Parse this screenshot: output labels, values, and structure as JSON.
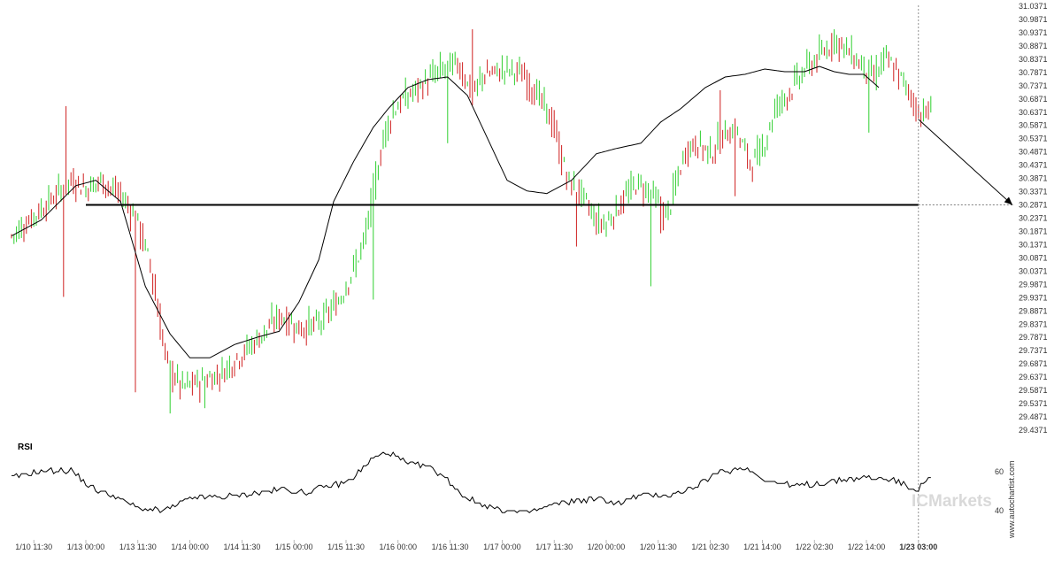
{
  "chart_data": {
    "type": "candlestick",
    "y_ticks": [
      "31.0371",
      "30.9871",
      "30.9371",
      "30.8871",
      "30.8371",
      "30.7871",
      "30.7371",
      "30.6871",
      "30.6371",
      "30.5871",
      "30.5371",
      "30.4871",
      "30.4371",
      "30.3871",
      "30.3371",
      "30.2871",
      "30.2371",
      "30.1871",
      "30.1371",
      "30.0871",
      "30.0371",
      "29.9871",
      "29.9371",
      "29.8871",
      "29.8371",
      "29.7871",
      "29.7371",
      "29.6871",
      "29.6371",
      "29.5871",
      "29.5371",
      "29.4871",
      "29.4371"
    ],
    "ylim": [
      29.4371,
      31.0371
    ],
    "x_ticks": [
      {
        "label": "1/10 11:30",
        "bar": 9
      },
      {
        "label": "1/13 00:00",
        "bar": 30
      },
      {
        "label": "1/13 11:30",
        "bar": 51
      },
      {
        "label": "1/14 00:00",
        "bar": 72
      },
      {
        "label": "1/14 11:30",
        "bar": 93
      },
      {
        "label": "1/15 00:00",
        "bar": 114
      },
      {
        "label": "1/15 11:30",
        "bar": 135
      },
      {
        "label": "1/16 00:00",
        "bar": 156
      },
      {
        "label": "1/16 11:30",
        "bar": 177
      },
      {
        "label": "1/17 00:00",
        "bar": 198
      },
      {
        "label": "1/17 11:30",
        "bar": 219
      },
      {
        "label": "1/20 00:00",
        "bar": 240
      },
      {
        "label": "1/20 11:30",
        "bar": 261
      },
      {
        "label": "1/21 02:30",
        "bar": 282
      },
      {
        "label": "1/21 14:00",
        "bar": 303
      },
      {
        "label": "1/22 02:30",
        "bar": 324
      },
      {
        "label": "1/22 14:00",
        "bar": 345
      },
      {
        "label": "1/23 03:00",
        "bar": 366,
        "bold": true
      }
    ],
    "bar_count": 372,
    "anchors": [
      [
        0,
        30.17
      ],
      [
        8,
        30.24
      ],
      [
        16,
        30.31
      ],
      [
        24,
        30.38
      ],
      [
        30,
        30.35
      ],
      [
        36,
        30.38
      ],
      [
        44,
        30.32
      ],
      [
        50,
        30.24
      ],
      [
        56,
        30.05
      ],
      [
        62,
        29.7
      ],
      [
        68,
        29.6
      ],
      [
        76,
        29.62
      ],
      [
        84,
        29.65
      ],
      [
        92,
        29.72
      ],
      [
        100,
        29.79
      ],
      [
        108,
        29.87
      ],
      [
        116,
        29.82
      ],
      [
        124,
        29.84
      ],
      [
        132,
        29.93
      ],
      [
        138,
        30.05
      ],
      [
        142,
        30.15
      ],
      [
        146,
        30.35
      ],
      [
        150,
        30.55
      ],
      [
        154,
        30.65
      ],
      [
        160,
        30.7
      ],
      [
        168,
        30.76
      ],
      [
        174,
        30.8
      ],
      [
        180,
        30.82
      ],
      [
        186,
        30.7
      ],
      [
        190,
        30.78
      ],
      [
        196,
        30.79
      ],
      [
        200,
        30.8
      ],
      [
        206,
        30.78
      ],
      [
        212,
        30.7
      ],
      [
        218,
        30.6
      ],
      [
        224,
        30.38
      ],
      [
        230,
        30.32
      ],
      [
        236,
        30.22
      ],
      [
        240,
        30.22
      ],
      [
        246,
        30.3
      ],
      [
        252,
        30.37
      ],
      [
        258,
        30.33
      ],
      [
        264,
        30.24
      ],
      [
        268,
        30.37
      ],
      [
        272,
        30.5
      ],
      [
        276,
        30.52
      ],
      [
        282,
        30.48
      ],
      [
        288,
        30.56
      ],
      [
        292,
        30.57
      ],
      [
        298,
        30.44
      ],
      [
        302,
        30.48
      ],
      [
        308,
        30.65
      ],
      [
        314,
        30.72
      ],
      [
        320,
        30.8
      ],
      [
        326,
        30.85
      ],
      [
        332,
        30.91
      ],
      [
        338,
        30.86
      ],
      [
        342,
        30.82
      ],
      [
        348,
        30.77
      ],
      [
        352,
        30.84
      ],
      [
        356,
        30.8
      ],
      [
        362,
        30.71
      ],
      [
        366,
        30.63
      ],
      [
        370,
        30.64
      ]
    ],
    "spikes": [
      [
        22,
        30.66,
        "up"
      ],
      [
        21,
        29.94,
        "down"
      ],
      [
        26,
        30.38,
        "down"
      ],
      [
        50,
        29.58,
        "down"
      ],
      [
        64,
        29.5,
        "down"
      ],
      [
        78,
        29.52,
        "down"
      ],
      [
        146,
        29.93,
        "down"
      ],
      [
        186,
        30.95,
        "up"
      ],
      [
        176,
        30.52,
        "down"
      ],
      [
        228,
        30.13,
        "down"
      ],
      [
        258,
        29.98,
        "down"
      ],
      [
        262,
        30.18,
        "down"
      ],
      [
        286,
        30.72,
        "up"
      ],
      [
        292,
        30.32,
        "down"
      ],
      [
        332,
        30.95,
        "up"
      ],
      [
        346,
        30.56,
        "down"
      ]
    ],
    "ma_anchors": [
      [
        0,
        30.17
      ],
      [
        12,
        30.23
      ],
      [
        26,
        30.36
      ],
      [
        34,
        30.38
      ],
      [
        44,
        30.3
      ],
      [
        54,
        29.98
      ],
      [
        64,
        29.8
      ],
      [
        72,
        29.71
      ],
      [
        80,
        29.71
      ],
      [
        90,
        29.76
      ],
      [
        100,
        29.79
      ],
      [
        108,
        29.81
      ],
      [
        116,
        29.92
      ],
      [
        124,
        30.08
      ],
      [
        130,
        30.3
      ],
      [
        138,
        30.45
      ],
      [
        146,
        30.58
      ],
      [
        152,
        30.65
      ],
      [
        160,
        30.73
      ],
      [
        168,
        30.76
      ],
      [
        176,
        30.77
      ],
      [
        184,
        30.7
      ],
      [
        192,
        30.54
      ],
      [
        200,
        30.38
      ],
      [
        208,
        30.34
      ],
      [
        216,
        30.33
      ],
      [
        226,
        30.38
      ],
      [
        236,
        30.48
      ],
      [
        244,
        30.5
      ],
      [
        254,
        30.52
      ],
      [
        262,
        30.6
      ],
      [
        270,
        30.65
      ],
      [
        280,
        30.73
      ],
      [
        288,
        30.77
      ],
      [
        296,
        30.78
      ],
      [
        304,
        30.8
      ],
      [
        312,
        30.79
      ],
      [
        320,
        30.79
      ],
      [
        326,
        30.81
      ],
      [
        332,
        30.79
      ],
      [
        338,
        30.78
      ],
      [
        344,
        30.78
      ],
      [
        350,
        30.73
      ]
    ],
    "rsi_anchors": [
      [
        0,
        57
      ],
      [
        10,
        60
      ],
      [
        24,
        61
      ],
      [
        32,
        52
      ],
      [
        42,
        47
      ],
      [
        52,
        41
      ],
      [
        62,
        40
      ],
      [
        74,
        47
      ],
      [
        86,
        47
      ],
      [
        98,
        49
      ],
      [
        110,
        51
      ],
      [
        118,
        49
      ],
      [
        126,
        52
      ],
      [
        136,
        55
      ],
      [
        146,
        67
      ],
      [
        152,
        70
      ],
      [
        160,
        64
      ],
      [
        168,
        63
      ],
      [
        176,
        56
      ],
      [
        182,
        48
      ],
      [
        190,
        43
      ],
      [
        198,
        40
      ],
      [
        208,
        39
      ],
      [
        216,
        42
      ],
      [
        226,
        45
      ],
      [
        236,
        46
      ],
      [
        246,
        44
      ],
      [
        254,
        48
      ],
      [
        266,
        48
      ],
      [
        276,
        52
      ],
      [
        286,
        60
      ],
      [
        296,
        62
      ],
      [
        306,
        55
      ],
      [
        316,
        53
      ],
      [
        326,
        54
      ],
      [
        336,
        56
      ],
      [
        346,
        57
      ],
      [
        356,
        56
      ],
      [
        362,
        52
      ],
      [
        366,
        51
      ],
      [
        370,
        57
      ]
    ],
    "rsi_ylim": [
      25,
      75
    ],
    "rsi_ticks": [
      "60",
      "40"
    ],
    "support_level": 30.2871,
    "support_start_bar": 30,
    "support_end_bar": 366,
    "forecast_start_bar": 366,
    "forecast_start_value": 30.61,
    "forecast_end_value": 30.2871,
    "rsi_title": "RSI",
    "watermark": "www.autochartist.com",
    "brand": "ICMarkets",
    "colors": {
      "up": "#2fcf2f",
      "down": "#cf2020",
      "line": "#000000",
      "grid": "#cccccc",
      "brand": "#d9d9d9"
    }
  }
}
